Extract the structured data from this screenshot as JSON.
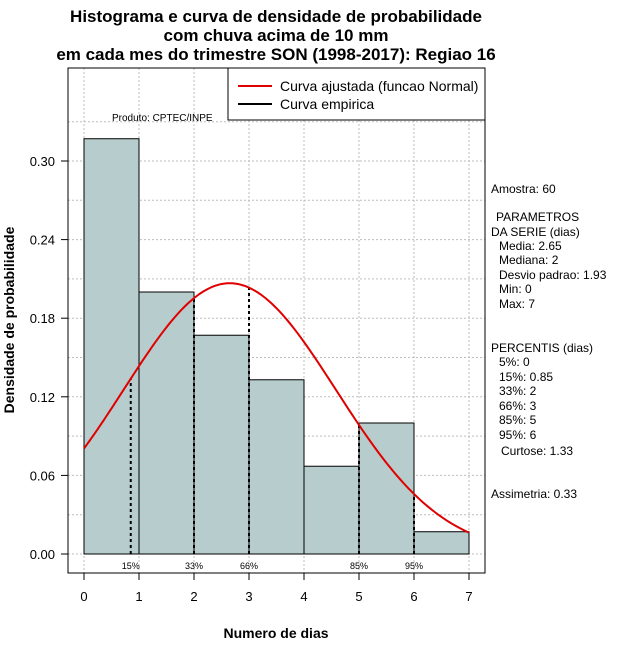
{
  "chart_data": {
    "type": "bar",
    "title_lines": [
      "Histograma e curva de densidade de probabilidade",
      "com chuva acima de 10 mm",
      "em cada mes do trimestre SON (1998-2017): Regiao 16"
    ],
    "xlabel": "Numero de dias",
    "ylabel": "Densidade de probabilidade",
    "xlim": [
      0,
      7
    ],
    "ylim": [
      0,
      0.3
    ],
    "x_ticks": [
      "0",
      "1",
      "2",
      "3",
      "4",
      "5",
      "6",
      "7"
    ],
    "y_ticks": [
      "0.00",
      "0.06",
      "0.12",
      "0.18",
      "0.24",
      "0.30"
    ],
    "bins": [
      {
        "from": 0,
        "to": 1,
        "density": 0.317
      },
      {
        "from": 1,
        "to": 2,
        "density": 0.2
      },
      {
        "from": 2,
        "to": 3,
        "density": 0.167
      },
      {
        "from": 3,
        "to": 4,
        "density": 0.133
      },
      {
        "from": 4,
        "to": 5,
        "density": 0.067
      },
      {
        "from": 5,
        "to": 6,
        "density": 0.1
      },
      {
        "from": 6,
        "to": 7,
        "density": 0.017
      }
    ],
    "normal_fit": {
      "mean": 2.65,
      "sd": 1.93,
      "from": 0,
      "to": 7
    },
    "percentile_markers": [
      {
        "x": 0.85,
        "label": "15%"
      },
      {
        "x": 2,
        "label": "33%"
      },
      {
        "x": 3,
        "label": "66%"
      },
      {
        "x": 5,
        "label": "85%"
      },
      {
        "x": 6,
        "label": "95%"
      }
    ],
    "legend": [
      {
        "label": "Curva ajustada (funcao Normal)",
        "color": "#e00000"
      },
      {
        "label": "Curva empirica",
        "color": "#000000"
      }
    ],
    "product_label": "Produto: CPTEC/INPE",
    "bar_color": "#b7cccc",
    "fit_color": "#e00000",
    "grid": true
  },
  "stats_panel": {
    "sample": "Amostra: 60",
    "params_title_1": "PARAMETROS",
    "params_title_2": "DA SERIE (dias)",
    "params": [
      "Media: 2.65",
      "Mediana: 2",
      "Desvio padrao: 1.93",
      "Min: 0",
      "Max: 7"
    ],
    "percentis_title": "PERCENTIS (dias)",
    "percentis": [
      "5%: 0",
      "15%: 0.85",
      "33%: 2",
      "66%: 3",
      "85%: 5",
      "95%: 6"
    ],
    "kurtosis": "Curtose: 1.33",
    "skewness": "Assimetria: 0.33"
  }
}
